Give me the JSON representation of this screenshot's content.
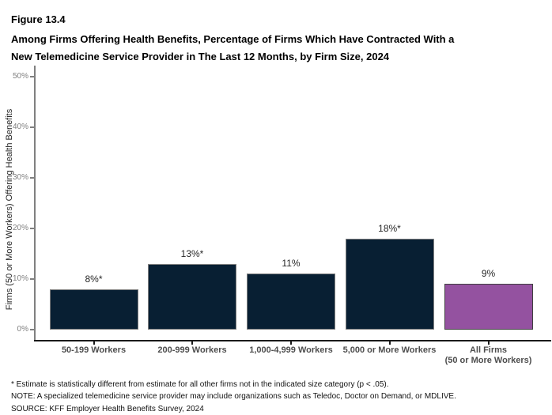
{
  "figure": {
    "label": "Figure 13.4",
    "title_line1": "Among Firms Offering Health Benefits, Percentage of Firms Which Have Contracted With a",
    "title_line2": "New Telemedicine Service Provider in The Last 12 Months, by Firm Size, 2024"
  },
  "chart_data": {
    "type": "bar",
    "title": "Among Firms Offering Health Benefits, Percentage of Firms Which Have Contracted With a New Telemedicine Service Provider in The Last 12 Months, by Firm Size, 2024",
    "xlabel": "",
    "ylabel": "Firms (50 or More Workers) Offering Health Benefits",
    "ylim": [
      0,
      50
    ],
    "grid": false,
    "legend": false,
    "categories": [
      "50-199 Workers",
      "200-999 Workers",
      "1,000-4,999 Workers",
      "5,000 or More Workers",
      "All Firms\n(50 or More Workers)"
    ],
    "values": [
      8,
      13,
      11,
      18,
      9
    ],
    "bar_labels": [
      "8%*",
      "13%*",
      "11%",
      "18%*",
      "9%"
    ],
    "bar_colors": [
      "#081f33",
      "#081f33",
      "#081f33",
      "#081f33",
      "#9452a0"
    ],
    "bar_border_colors": [
      "#808080",
      "#808080",
      "#808080",
      "#808080",
      "#404040"
    ],
    "y_ticks": [
      {
        "label": "0%",
        "value": 0
      },
      {
        "label": "10%",
        "value": 10
      },
      {
        "label": "20%",
        "value": 20
      },
      {
        "label": "30%",
        "value": 30
      },
      {
        "label": "40%",
        "value": 40
      },
      {
        "label": "50%",
        "value": 50
      }
    ]
  },
  "footnotes": {
    "estimate": "* Estimate is statistically different from estimate for all other firms not in the indicated size category (p < .05).",
    "note": "NOTE: A specialized telemedicine service provider may include organizations such as Teledoc, Doctor on Demand, or MDLIVE.",
    "source": "SOURCE: KFF Employer Health Benefits Survey, 2024"
  },
  "colors": {
    "bar_navy": "#081f33",
    "bar_purple": "#9452a0",
    "axis_gray": "#808080",
    "axis_black": "#1a1a1a",
    "tick_label_gray": "#7f7f7f",
    "category_label_gray": "#4d4d4d",
    "data_label": "#262626"
  }
}
